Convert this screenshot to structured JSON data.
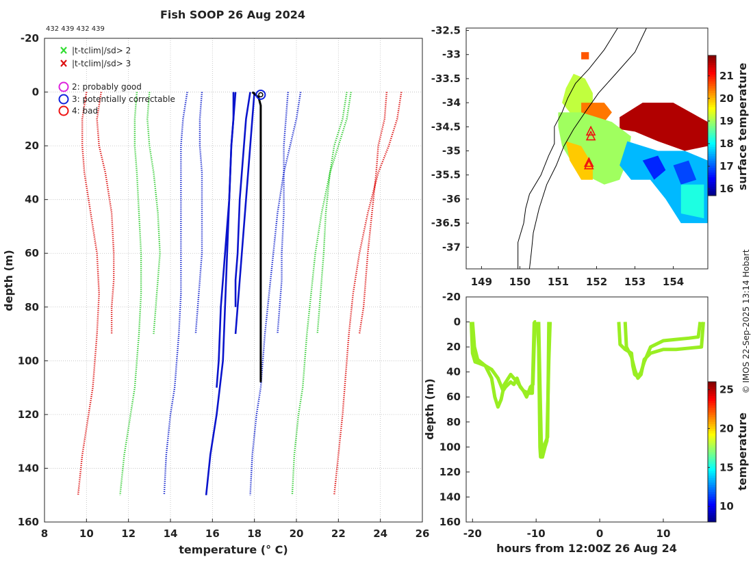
{
  "title": "Fish SOOP 26 Aug 2024",
  "platform_ids": "432 439 432 439",
  "credit": "© IMOS 22-Sep-2025 13:14 Hobart",
  "colors": {
    "clim_red": "#dd1111",
    "clim_green": "#33cc33",
    "clim_blue": "#1122cc",
    "profile_blue": "#0a14cc",
    "profile_black": "#000000",
    "flag_magenta": "#dd22dd",
    "flag_blue": "#1122dd",
    "flag_red": "#ee1111",
    "trace_green": "#99ee22"
  },
  "legend": {
    "x_green_label": "|t-tclim|/sd> 2",
    "x_red_label": "|t-tclim|/sd> 3",
    "flag2_label": "2: probably good",
    "flag3_label": "3: potentially correctable",
    "flag4_label": "4: bad"
  },
  "chart_data": [
    {
      "type": "line",
      "name": "temperature profile vs climatology",
      "xlabel": "temperature (° C)",
      "ylabel": "depth (m)",
      "xlim": [
        8,
        26
      ],
      "ylim": [
        -20,
        160
      ],
      "y_inverted": true,
      "x_ticks": [
        8,
        10,
        12,
        14,
        16,
        18,
        20,
        22,
        24,
        26
      ],
      "y_ticks": [
        -20,
        0,
        20,
        40,
        60,
        80,
        100,
        120,
        140,
        160
      ],
      "grid": true,
      "climatology_series": [
        {
          "name": "clim -3sd A",
          "color": "red",
          "depth": [
            0,
            10,
            20,
            30,
            45,
            60,
            75,
            90,
            100,
            110,
            120,
            135,
            150
          ],
          "temp": [
            10.0,
            9.8,
            9.8,
            9.9,
            10.2,
            10.5,
            10.6,
            10.5,
            10.4,
            10.3,
            10.1,
            9.8,
            9.6
          ]
        },
        {
          "name": "clim -3sd B",
          "color": "red",
          "depth": [
            0,
            10,
            20,
            30,
            45,
            60,
            70,
            80,
            90
          ],
          "temp": [
            10.7,
            10.5,
            10.6,
            10.9,
            11.2,
            11.3,
            11.3,
            11.2,
            11.2
          ]
        },
        {
          "name": "clim -2sd A",
          "color": "green",
          "depth": [
            0,
            10,
            20,
            30,
            45,
            60,
            75,
            90,
            100,
            110,
            120,
            135,
            150
          ],
          "temp": [
            12.4,
            12.3,
            12.3,
            12.4,
            12.5,
            12.6,
            12.6,
            12.5,
            12.4,
            12.3,
            12.1,
            11.8,
            11.6
          ]
        },
        {
          "name": "clim -2sd B",
          "color": "green",
          "depth": [
            0,
            10,
            20,
            30,
            45,
            60,
            70,
            80,
            90
          ],
          "temp": [
            13.0,
            12.9,
            13.0,
            13.2,
            13.4,
            13.5,
            13.4,
            13.3,
            13.2
          ]
        },
        {
          "name": "clim -1sd A",
          "color": "blue",
          "depth": [
            0,
            10,
            20,
            30,
            45,
            60,
            75,
            90,
            100,
            110,
            120,
            135,
            150
          ],
          "temp": [
            14.8,
            14.6,
            14.5,
            14.5,
            14.5,
            14.5,
            14.5,
            14.4,
            14.3,
            14.2,
            14.0,
            13.8,
            13.7
          ]
        },
        {
          "name": "clim -1sd B",
          "color": "blue",
          "depth": [
            0,
            10,
            20,
            30,
            45,
            60,
            70,
            80,
            90
          ],
          "temp": [
            15.5,
            15.4,
            15.4,
            15.5,
            15.5,
            15.5,
            15.4,
            15.3,
            15.2
          ]
        },
        {
          "name": "clim +1sd A",
          "color": "blue",
          "depth": [
            0,
            10,
            20,
            30,
            45,
            60,
            75,
            90,
            100,
            110,
            120,
            135,
            150
          ],
          "temp": [
            20.2,
            20.0,
            19.7,
            19.4,
            19.1,
            18.9,
            18.7,
            18.5,
            18.4,
            18.3,
            18.1,
            17.9,
            17.8
          ]
        },
        {
          "name": "clim +1sd B",
          "color": "blue",
          "depth": [
            0,
            10,
            20,
            30,
            45,
            60,
            70,
            80,
            90
          ],
          "temp": [
            19.6,
            19.5,
            19.4,
            19.4,
            19.4,
            19.3,
            19.3,
            19.2,
            19.1
          ]
        },
        {
          "name": "clim +2sd A",
          "color": "green",
          "depth": [
            0,
            10,
            20,
            30,
            45,
            60,
            75,
            90,
            100,
            110,
            120,
            135,
            150
          ],
          "temp": [
            22.6,
            22.4,
            22.0,
            21.6,
            21.2,
            20.9,
            20.7,
            20.5,
            20.4,
            20.3,
            20.1,
            19.9,
            19.8
          ]
        },
        {
          "name": "clim +2sd B",
          "color": "green",
          "depth": [
            0,
            10,
            20,
            30,
            45,
            60,
            70,
            80,
            90
          ],
          "temp": [
            22.4,
            22.2,
            21.8,
            21.6,
            21.4,
            21.3,
            21.2,
            21.1,
            21.0
          ]
        },
        {
          "name": "clim +3sd A",
          "color": "red",
          "depth": [
            0,
            10,
            20,
            30,
            45,
            60,
            75,
            90,
            100,
            110,
            120,
            135,
            150
          ],
          "temp": [
            25.0,
            24.8,
            24.4,
            23.9,
            23.4,
            23.0,
            22.7,
            22.5,
            22.4,
            22.3,
            22.2,
            22.0,
            21.8
          ]
        },
        {
          "name": "clim +3sd B",
          "color": "red",
          "depth": [
            0,
            10,
            20,
            30,
            45,
            60,
            70,
            80,
            90
          ],
          "temp": [
            24.3,
            24.2,
            23.9,
            23.8,
            23.6,
            23.4,
            23.3,
            23.2,
            23.0
          ]
        }
      ],
      "profile_series": [
        {
          "name": "profile 1",
          "color": "blue",
          "depth": [
            0,
            10,
            20,
            40,
            60,
            80,
            100,
            110
          ],
          "temp": [
            17.0,
            17.0,
            16.9,
            16.8,
            16.6,
            16.4,
            16.3,
            16.2
          ]
        },
        {
          "name": "profile 2",
          "color": "blue",
          "depth": [
            0,
            10,
            20,
            40,
            60,
            80,
            100,
            120,
            135,
            150
          ],
          "temp": [
            17.1,
            17.0,
            16.9,
            16.8,
            16.7,
            16.6,
            16.5,
            16.2,
            15.9,
            15.7
          ]
        },
        {
          "name": "profile 3",
          "color": "blue",
          "depth": [
            0,
            10,
            20,
            40,
            60,
            70,
            80
          ],
          "temp": [
            17.8,
            17.6,
            17.5,
            17.3,
            17.2,
            17.1,
            17.1
          ]
        },
        {
          "name": "profile 4",
          "color": "blue",
          "depth": [
            0,
            10,
            20,
            40,
            60,
            80,
            90
          ],
          "temp": [
            18.0,
            17.9,
            17.8,
            17.6,
            17.4,
            17.2,
            17.1
          ]
        },
        {
          "name": "profile 5",
          "color": "black",
          "depth": [
            0,
            2,
            5,
            10,
            20,
            40,
            60,
            80,
            100,
            108
          ],
          "temp": [
            17.9,
            18.2,
            18.3,
            18.3,
            18.3,
            18.3,
            18.3,
            18.3,
            18.3,
            18.3
          ]
        }
      ],
      "flag_marker": {
        "flag": 3,
        "temp": 18.3,
        "depth": 1
      }
    },
    {
      "type": "heatmap",
      "name": "surface temperature map",
      "colorbar_label": "surface temperature",
      "colorbar_ticks": [
        16,
        17,
        18,
        19,
        20,
        21
      ],
      "colorbar_range": [
        15.7,
        21.9
      ],
      "xlim": [
        148.6,
        154.9
      ],
      "ylim": [
        -37.45,
        -32.45
      ],
      "x_ticks": [
        149,
        150,
        151,
        152,
        153,
        154
      ],
      "y_ticks": [
        -32.5,
        -33,
        -33.5,
        -34,
        -34.5,
        -35,
        -35.5,
        -36,
        -36.5,
        -37
      ],
      "markers": [
        {
          "lon": 151.85,
          "lat": -34.6
        },
        {
          "lon": 151.85,
          "lat": -34.7
        },
        {
          "lon": 151.8,
          "lat": -35.25
        },
        {
          "lon": 151.8,
          "lat": -35.3
        }
      ]
    },
    {
      "type": "line",
      "name": "depth vs hours",
      "xlabel": "hours from 12:00Z 26 Aug 24",
      "ylabel": "depth (m)",
      "xlim": [
        -21,
        17
      ],
      "ylim": [
        -20,
        160
      ],
      "x_ticks": [
        -20,
        -10,
        0,
        10
      ],
      "y_ticks": [
        -20,
        0,
        20,
        40,
        60,
        80,
        100,
        120,
        140,
        160
      ],
      "colorbar_label": "temperature",
      "colorbar_ticks": [
        10,
        15,
        20,
        25
      ],
      "colorbar_range": [
        8,
        26
      ],
      "series": [
        {
          "name": "trace 1",
          "hours": [
            -20.2,
            -20.0,
            -19.6,
            -19.0,
            -18.0,
            -17.0,
            -16.0,
            -15.2,
            -14.8,
            -14.0,
            -13.5,
            -13.0,
            -12.5,
            -12.0,
            -11.5,
            -10.9,
            -10.5,
            -10.2,
            -10.0
          ],
          "depth": [
            0,
            25,
            32,
            33,
            35,
            38,
            45,
            55,
            52,
            48,
            50,
            45,
            52,
            55,
            60,
            52,
            50,
            0,
            0
          ]
        },
        {
          "name": "trace 2",
          "hours": [
            -20.0,
            -19.7,
            -19.2,
            -18.0,
            -17.0,
            -16.5,
            -16.0,
            -15.5,
            -15.0,
            -14.0,
            -13.0,
            -12.0,
            -11.2,
            -10.6,
            -10.3
          ],
          "depth": [
            0,
            20,
            30,
            35,
            45,
            60,
            68,
            62,
            50,
            42,
            48,
            55,
            57,
            57,
            0
          ]
        },
        {
          "name": "trace 3",
          "hours": [
            -9.8,
            -9.6,
            -9.5,
            -9.4,
            -9.3,
            -9.0,
            -8.6,
            -8.3,
            -8.0,
            -7.8
          ],
          "depth": [
            0,
            20,
            60,
            100,
            108,
            108,
            100,
            95,
            30,
            0
          ]
        },
        {
          "name": "trace 4",
          "hours": [
            -9.6,
            -9.4,
            -9.2,
            -9.0,
            -8.8,
            -8.5,
            -8.2,
            -8.0
          ],
          "depth": [
            0,
            50,
            95,
            105,
            100,
            96,
            92,
            0
          ]
        },
        {
          "name": "trace 5",
          "hours": [
            3.0,
            3.2,
            4.0,
            5.0,
            5.2,
            5.5,
            6.0,
            6.5,
            7.0,
            8.0,
            10.0,
            12.0,
            14.0,
            15.5,
            15.8
          ],
          "depth": [
            0,
            18,
            22,
            25,
            35,
            42,
            44,
            40,
            32,
            20,
            15,
            14,
            13,
            12,
            0
          ]
        },
        {
          "name": "trace 6",
          "hours": [
            4.0,
            4.2,
            5.0,
            5.5,
            6.0,
            6.5,
            7.0,
            8.0,
            10.0,
            12.0,
            14.0,
            16.0,
            16.3
          ],
          "depth": [
            0,
            20,
            28,
            38,
            45,
            42,
            30,
            25,
            22,
            22,
            21,
            20,
            0
          ]
        }
      ]
    }
  ]
}
